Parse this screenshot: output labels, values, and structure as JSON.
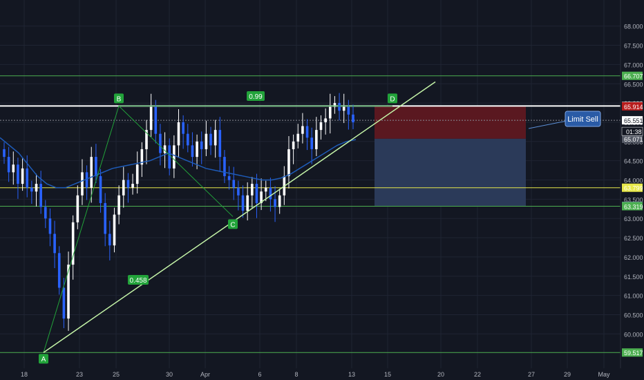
{
  "theme": {
    "background": "#131722",
    "grid": "#1f2433",
    "axis_text": "#b2b5be",
    "bull": "#ffffff",
    "bear": "#2962ff",
    "ma_line": "#1e5bb8",
    "pattern_green": "#22a33a",
    "trend_line": "#c5f5a8",
    "stop_zone": "#5a1820",
    "target_zone": "#2b3a59",
    "white_level": "#ffffff",
    "yellow_level": "#e8e84a",
    "green_level": "#4caf50"
  },
  "chart_data": {
    "type": "candlestick",
    "ylim": [
      59.3,
      68.3
    ],
    "y_ticks": [
      "68.000",
      "67.500",
      "67.000",
      "66.500",
      "66.000",
      "65.500",
      "65.000",
      "64.500",
      "64.000",
      "63.500",
      "63.000",
      "62.500",
      "62.000",
      "61.500",
      "61.000",
      "60.500",
      "60.000"
    ],
    "y_tick_values": [
      68.0,
      67.5,
      67.0,
      66.5,
      66.0,
      65.5,
      65.0,
      64.5,
      64.0,
      63.5,
      63.0,
      62.5,
      62.0,
      61.5,
      61.0,
      60.5,
      60.0
    ],
    "x_ticks": [
      "18",
      "23",
      "25",
      "30",
      "Apr",
      "6",
      "8",
      "13",
      "15",
      "20",
      "22",
      "27",
      "29",
      "May"
    ],
    "candles_close": [
      64.6,
      64.2,
      64.4,
      63.9,
      64.3,
      63.8,
      63.7,
      63.9,
      63.3,
      63.0,
      62.6,
      62.1,
      61.2,
      60.4,
      61.8,
      62.9,
      63.6,
      64.2,
      63.8,
      64.6,
      64.1,
      63.4,
      62.6,
      62.3,
      63.1,
      63.6,
      64.0,
      63.8,
      63.9,
      64.4,
      64.8,
      65.3,
      65.9,
      65.2,
      64.7,
      64.9,
      64.3,
      64.9,
      65.5,
      65.2,
      64.9,
      64.6,
      65.0,
      64.8,
      65.2,
      64.9,
      65.3,
      64.6,
      64.1,
      64.0,
      63.8,
      63.6,
      63.2,
      63.6,
      63.9,
      63.4,
      63.7,
      63.8,
      63.5,
      63.3,
      63.6,
      64.1,
      64.8,
      65.0,
      65.2,
      65.4,
      65.1,
      64.8,
      65.3,
      65.5,
      65.6,
      65.9,
      66.0,
      65.8,
      65.9,
      65.7,
      65.5
    ],
    "ma_values": [
      65.1,
      64.9,
      64.7,
      64.4,
      64.1,
      63.9,
      63.8,
      63.8,
      63.9,
      64.0,
      64.1,
      64.2,
      64.3,
      64.35,
      64.4,
      64.45,
      64.5,
      64.6,
      64.7,
      64.6,
      64.5,
      64.4,
      64.3,
      64.25,
      64.2,
      64.15,
      64.1,
      64.05,
      64.0,
      64.0,
      64.05,
      64.15,
      64.3,
      64.45,
      64.6,
      64.75,
      64.9,
      65.0,
      65.05
    ],
    "levels": [
      {
        "price": 66.707,
        "label": "66.707",
        "color": "#4caf50"
      },
      {
        "price": 65.923,
        "label": "65.923",
        "color": "#ffffff"
      },
      {
        "price": 65.914,
        "label": "65.914",
        "color": "#b71c1c"
      },
      {
        "price": 65.551,
        "label": "65.551",
        "color": "#ffffff"
      },
      {
        "price": 65.071,
        "label": "65.071",
        "color": "#555a66"
      },
      {
        "price": 63.799,
        "label": "63.799",
        "color": "#e8e84a"
      },
      {
        "price": 63.328,
        "label": "63.328",
        "color": "#6a8ab0"
      },
      {
        "price": 63.319,
        "label": "63.319",
        "color": "#4caf50"
      },
      {
        "price": 59.517,
        "label": "59.517",
        "color": "#4caf50"
      }
    ],
    "countdown": "01:38",
    "pattern_points": [
      {
        "name": "A",
        "price": 59.517
      },
      {
        "name": "B",
        "price": 65.923
      },
      {
        "name": "C",
        "price": 63.1
      },
      {
        "name": "D",
        "price": 65.923
      }
    ],
    "ratios": [
      "0.458",
      "0.99"
    ],
    "annotation": "Limit Sell"
  }
}
